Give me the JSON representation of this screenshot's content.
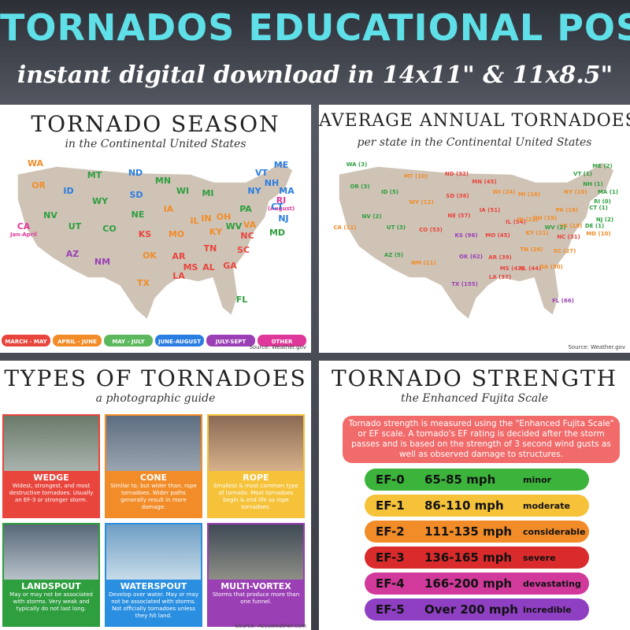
{
  "header": {
    "title": "TORNADOS EDUCATIONAL POSTERS",
    "subtitle": "instant digital download in 14x11\" & 11x8.5\""
  },
  "season": {
    "title": "TORNADO SEASON",
    "subtitle": "in the Continental United States",
    "states": [
      {
        "label": "WA",
        "color": "#f28c28"
      },
      {
        "label": "OR",
        "color": "#f28c28"
      },
      {
        "label": "CA",
        "color": "#e0389a",
        "note": "Jan-April"
      },
      {
        "label": "NV",
        "color": "#2e9e3e"
      },
      {
        "label": "ID",
        "color": "#2a7de1"
      },
      {
        "label": "MT",
        "color": "#2e9e3e"
      },
      {
        "label": "WY",
        "color": "#2e9e3e"
      },
      {
        "label": "UT",
        "color": "#2e9e3e"
      },
      {
        "label": "AZ",
        "color": "#9b3fb5"
      },
      {
        "label": "CO",
        "color": "#2e9e3e"
      },
      {
        "label": "NM",
        "color": "#9b3fb5"
      },
      {
        "label": "ND",
        "color": "#2a7de1"
      },
      {
        "label": "SD",
        "color": "#2a7de1"
      },
      {
        "label": "NE",
        "color": "#2e9e3e"
      },
      {
        "label": "KS",
        "color": "#e8453c"
      },
      {
        "label": "OK",
        "color": "#f28c28"
      },
      {
        "label": "TX",
        "color": "#f28c28"
      },
      {
        "label": "MN",
        "color": "#2e9e3e"
      },
      {
        "label": "IA",
        "color": "#f28c28"
      },
      {
        "label": "MO",
        "color": "#f28c28"
      },
      {
        "label": "AR",
        "color": "#e8453c"
      },
      {
        "label": "LA",
        "color": "#e8453c"
      },
      {
        "label": "WI",
        "color": "#2e9e3e"
      },
      {
        "label": "IL",
        "color": "#f28c28"
      },
      {
        "label": "MI",
        "color": "#2e9e3e"
      },
      {
        "label": "IN",
        "color": "#f28c28"
      },
      {
        "label": "OH",
        "color": "#f28c28"
      },
      {
        "label": "KY",
        "color": "#f28c28"
      },
      {
        "label": "TN",
        "color": "#e8453c"
      },
      {
        "label": "MS",
        "color": "#e8453c"
      },
      {
        "label": "AL",
        "color": "#e8453c"
      },
      {
        "label": "GA",
        "color": "#e8453c"
      },
      {
        "label": "FL",
        "color": "#2e9e3e"
      },
      {
        "label": "SC",
        "color": "#e8453c"
      },
      {
        "label": "NC",
        "color": "#e8453c"
      },
      {
        "label": "VA",
        "color": "#f28c28"
      },
      {
        "label": "WV",
        "color": "#2e9e3e"
      },
      {
        "label": "PA",
        "color": "#2e9e3e"
      },
      {
        "label": "NY",
        "color": "#2a7de1"
      },
      {
        "label": "VT",
        "color": "#2a7de1"
      },
      {
        "label": "NH",
        "color": "#2a7de1"
      },
      {
        "label": "ME",
        "color": "#2a7de1"
      },
      {
        "label": "MA",
        "color": "#2a7de1"
      },
      {
        "label": "RI",
        "color": "#e0389a",
        "note": "(August)"
      },
      {
        "label": "CT",
        "color": "#2a7de1"
      },
      {
        "label": "NJ",
        "color": "#2a7de1"
      },
      {
        "label": "MD",
        "color": "#2e9e3e"
      }
    ],
    "legend": [
      {
        "label": "MARCH - MAY",
        "color": "#e8453c"
      },
      {
        "label": "APRIL - JUNE",
        "color": "#f28c28"
      },
      {
        "label": "MAY - JULY",
        "color": "#5cb85c"
      },
      {
        "label": "JUNE-AUGUST",
        "color": "#2a7de1"
      },
      {
        "label": "JULY-SEPT",
        "color": "#9b3fb5"
      },
      {
        "label": "OTHER",
        "color": "#e0389a"
      }
    ],
    "source": "Source: Weather.gov"
  },
  "average": {
    "title": "AVERAGE ANNUAL TORNADOES",
    "subtitle": "per state in the Continental United States",
    "states": [
      {
        "label": "WA (3)",
        "color": "#2e9e3e"
      },
      {
        "label": "OR (3)",
        "color": "#2e9e3e"
      },
      {
        "label": "CA (11)",
        "color": "#f28c28"
      },
      {
        "label": "NV (2)",
        "color": "#2e9e3e"
      },
      {
        "label": "ID (5)",
        "color": "#2e9e3e"
      },
      {
        "label": "MT (10)",
        "color": "#f28c28"
      },
      {
        "label": "WY (12)",
        "color": "#f28c28"
      },
      {
        "label": "UT (3)",
        "color": "#2e9e3e"
      },
      {
        "label": "AZ (5)",
        "color": "#2e9e3e"
      },
      {
        "label": "CO (53)",
        "color": "#e8453c"
      },
      {
        "label": "NM (11)",
        "color": "#f28c28"
      },
      {
        "label": "ND (32)",
        "color": "#e8453c"
      },
      {
        "label": "SD (36)",
        "color": "#e8453c"
      },
      {
        "label": "NE (57)",
        "color": "#e8453c"
      },
      {
        "label": "KS (96)",
        "color": "#9b3fb5"
      },
      {
        "label": "OK (62)",
        "color": "#9b3fb5"
      },
      {
        "label": "TX (155)",
        "color": "#9b3fb5"
      },
      {
        "label": "MN (45)",
        "color": "#e8453c"
      },
      {
        "label": "IA (51)",
        "color": "#e8453c"
      },
      {
        "label": "MO (45)",
        "color": "#e8453c"
      },
      {
        "label": "AR (39)",
        "color": "#e8453c"
      },
      {
        "label": "LA (37)",
        "color": "#e8453c"
      },
      {
        "label": "WI (24)",
        "color": "#f28c28"
      },
      {
        "label": "IL (54)",
        "color": "#e8453c"
      },
      {
        "label": "MI (16)",
        "color": "#f28c28"
      },
      {
        "label": "IN (22)",
        "color": "#f28c28"
      },
      {
        "label": "OH (19)",
        "color": "#f28c28"
      },
      {
        "label": "KY (21)",
        "color": "#f28c28"
      },
      {
        "label": "TN (26)",
        "color": "#f28c28"
      },
      {
        "label": "MS (43)",
        "color": "#e8453c"
      },
      {
        "label": "AL (44)",
        "color": "#e8453c"
      },
      {
        "label": "GA (30)",
        "color": "#f28c28"
      },
      {
        "label": "FL (66)",
        "color": "#9b3fb5"
      },
      {
        "label": "SC (27)",
        "color": "#f28c28"
      },
      {
        "label": "NC (31)",
        "color": "#e8453c"
      },
      {
        "label": "VA (18)",
        "color": "#f28c28"
      },
      {
        "label": "WV (2)",
        "color": "#2e9e3e"
      },
      {
        "label": "PA (16)",
        "color": "#f28c28"
      },
      {
        "label": "NY (10)",
        "color": "#f28c28"
      },
      {
        "label": "VT (1)",
        "color": "#2e9e3e"
      },
      {
        "label": "NH (1)",
        "color": "#2e9e3e"
      },
      {
        "label": "ME (2)",
        "color": "#2e9e3e"
      },
      {
        "label": "MA (1)",
        "color": "#2e9e3e"
      },
      {
        "label": "RI (0)",
        "color": "#2e9e3e"
      },
      {
        "label": "CT (1)",
        "color": "#2e9e3e"
      },
      {
        "label": "NJ (2)",
        "color": "#2e9e3e"
      },
      {
        "label": "DE (1)",
        "color": "#2e9e3e"
      },
      {
        "label": "MD (10)",
        "color": "#f28c28"
      }
    ],
    "source": "Source: Weather.gov"
  },
  "types": {
    "title": "TYPES OF TORNADOES",
    "subtitle": "a photographic guide",
    "items": [
      {
        "name": "WEDGE",
        "desc": "Widest, strongest, and most destructive tornadoes. Usually an EF-3 or stronger storm.",
        "color": "#e8453c"
      },
      {
        "name": "CONE",
        "desc": "Similar to, but wider than, rope tornadoes. Wider paths generally result in more damage.",
        "color": "#f28c28"
      },
      {
        "name": "ROPE",
        "desc": "Smallest & most common type of tornado. Most tornadoes begin & end life as rope tornadoes.",
        "color": "#f5c23a"
      },
      {
        "name": "LANDSPOUT",
        "desc": "May or may not be associated with storms. Very weak and typically do not last long.",
        "color": "#2e9e3e"
      },
      {
        "name": "WATERSPOUT",
        "desc": "Develop over water. May or may not be associated with storms. Not officially tornadoes unless they hit land.",
        "color": "#2a8fe1"
      },
      {
        "name": "MULTI-VORTEX",
        "desc": "Storms that produce more than one funnel.",
        "color": "#9b3fb5"
      }
    ],
    "source": "Source: Accuweather.com"
  },
  "strength": {
    "title": "TORNADO STRENGTH",
    "subtitle": "the Enhanced Fujita Scale",
    "intro": "Tornado strength is measured using the \"Enhanced Fujita Scale\" or EF scale. A tornado's EF rating is decided after the storm passes and is based on the strength of 3 second wind gusts as well as observed damage to structures.",
    "rows": [
      {
        "level": "EF-0",
        "speed": "65-85 mph",
        "damage": "minor",
        "color": "#3cb43c"
      },
      {
        "level": "EF-1",
        "speed": "86-110 mph",
        "damage": "moderate",
        "color": "#f5c23a"
      },
      {
        "level": "EF-2",
        "speed": "111-135 mph",
        "damage": "considerable",
        "color": "#f28c28"
      },
      {
        "level": "EF-3",
        "speed": "136-165 mph",
        "damage": "severe",
        "color": "#d92b2b"
      },
      {
        "level": "EF-4",
        "speed": "166-200 mph",
        "damage": "devastating",
        "color": "#d13a9b"
      },
      {
        "level": "EF-5",
        "speed": "Over 200 mph",
        "damage": "incredible",
        "color": "#8e3fc2"
      }
    ]
  }
}
